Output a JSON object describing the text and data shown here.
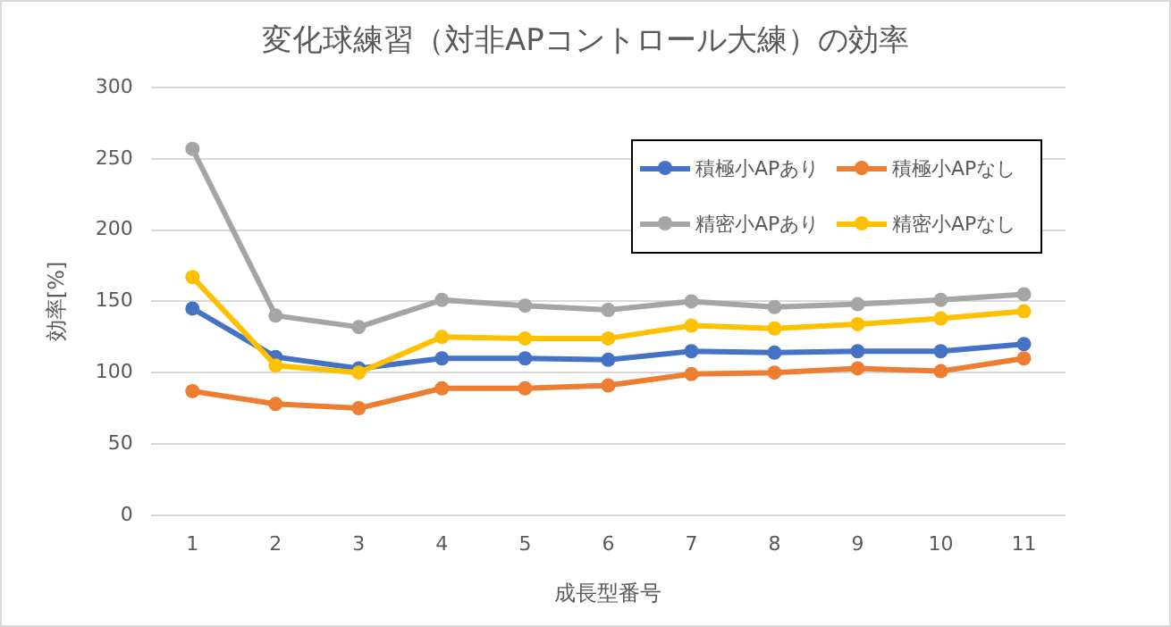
{
  "chart_data": {
    "type": "line",
    "title": "変化球練習（対非APコントロール大練）の効率",
    "xlabel": "成長型番号",
    "ylabel": "効率[%]",
    "categories": [
      "1",
      "2",
      "3",
      "4",
      "5",
      "6",
      "7",
      "8",
      "9",
      "10",
      "11"
    ],
    "series": [
      {
        "name": "積極小APあり",
        "color": "#4472c4",
        "values": [
          145,
          111,
          103,
          110,
          110,
          109,
          115,
          114,
          115,
          115,
          120
        ]
      },
      {
        "name": "積極小APなし",
        "color": "#ed7d31",
        "values": [
          87,
          78,
          75,
          89,
          89,
          91,
          99,
          100,
          103,
          101,
          110
        ]
      },
      {
        "name": "精密小APあり",
        "color": "#a5a5a5",
        "values": [
          257,
          140,
          132,
          151,
          147,
          144,
          150,
          146,
          148,
          151,
          155
        ]
      },
      {
        "name": "精密小APなし",
        "color": "#ffc000",
        "values": [
          167,
          105,
          100,
          125,
          124,
          124,
          133,
          131,
          134,
          138,
          143
        ]
      }
    ],
    "ylim": [
      0,
      300
    ],
    "yticks": [
      0,
      50,
      100,
      150,
      200,
      250,
      300
    ],
    "grid": "y",
    "legend": "top right",
    "marker": "circle",
    "line_style": "solid"
  }
}
